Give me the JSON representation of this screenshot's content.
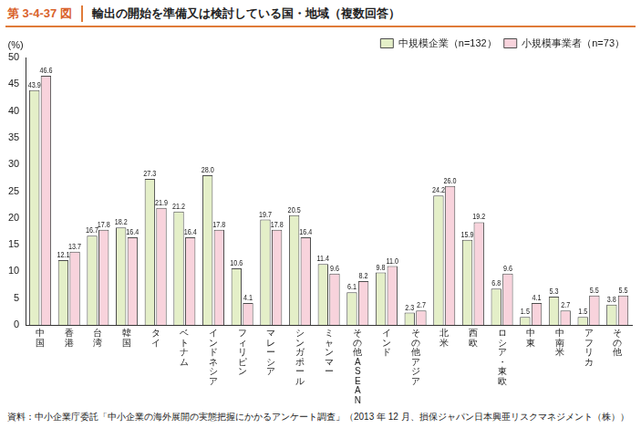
{
  "chart_data": {
    "type": "bar",
    "figure_number": "第 3-4-37 図",
    "title": "輸出の開始を準備又は検討している国・地域（複数回答）",
    "ylabel": "(%)",
    "source": "資料：中小企業庁委託「中小企業の海外展開の実態把握にかかるアンケート調査」（2013 年 12 月、損保ジャパン日本興亜リスクマネジメント（株））",
    "categories": [
      "中国",
      "香港",
      "台湾",
      "韓国",
      "タイ",
      "ベトナム",
      "インドネシア",
      "フィリピン",
      "マレーシア",
      "シンガポール",
      "ミャンマー",
      "その他ASEAN",
      "インド",
      "その他アジア",
      "北米",
      "西欧",
      "ロシア・東欧",
      "中東",
      "中南米",
      "アフリカ",
      "その他"
    ],
    "series": [
      {
        "name": "中規模企業（n=132）",
        "color": "#e4efc8",
        "values": [
          43.9,
          12.1,
          16.7,
          18.2,
          27.3,
          21.2,
          28.0,
          10.6,
          19.7,
          20.5,
          11.4,
          6.1,
          9.8,
          2.3,
          24.2,
          15.9,
          6.8,
          1.5,
          5.3,
          1.5,
          3.8
        ],
        "value_labels": [
          "43.9",
          "12.1",
          "16.7",
          "18.2",
          "27.3",
          "21.2",
          "28.0",
          "10.6",
          "19.7",
          "20.5",
          "11.4",
          "6.1",
          "9.8",
          "2.3",
          "24.2",
          "15.9",
          "6.8",
          "1.5",
          "5.3",
          "1.5",
          "3.8"
        ]
      },
      {
        "name": "小規模事業者（n=73）",
        "color": "#f8d3dc",
        "values": [
          46.6,
          13.7,
          17.8,
          16.4,
          21.9,
          16.4,
          17.8,
          4.1,
          17.8,
          16.4,
          9.6,
          8.2,
          11.0,
          2.7,
          26.0,
          19.2,
          9.6,
          4.1,
          2.7,
          5.5,
          5.5
        ],
        "value_labels": [
          "46.6",
          "13.7",
          "17.8",
          "16.4",
          "21.9",
          "16.4",
          "17.8",
          "4.1",
          "17.8",
          "16.4",
          "9.6",
          "8.2",
          "11.0",
          "2.7",
          "26.0",
          "19.2",
          "9.6",
          "4.1",
          "2.7",
          "5.5",
          "5.5"
        ]
      }
    ],
    "ylim": [
      0,
      50
    ],
    "yticks": [
      0,
      5,
      10,
      15,
      20,
      25,
      30,
      35,
      40,
      45,
      50
    ],
    "grid": false,
    "legend": "upper right",
    "data_labels": true
  }
}
